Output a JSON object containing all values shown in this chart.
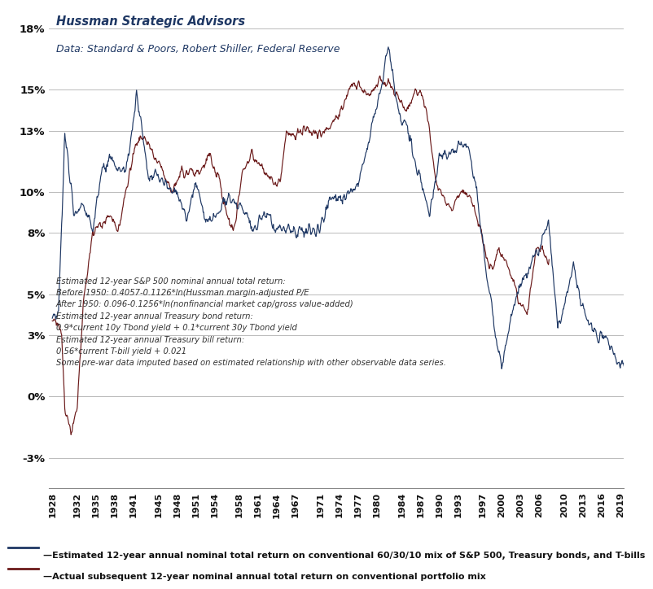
{
  "title_line1": "Hussman Strategic Advisors",
  "title_line2": "Data: Standard & Poors, Robert Shiller, Federal Reserve",
  "annotation_text": "Estimated 12-year S&P 500 nominal annual total return:\nBefore 1950: 0.4057-0.1126*ln(Hussman margin-adjusted P/E\nAfter 1950: 0.096-0.1256*ln(nonfinancial market cap/gross value-added)\nEstimated 12-year annual Treasury bond return:\n0.9*current 10y Tbond yield + 0.1*current 30y Tbond yield\nEstimated 12-year annual Treasury bill return:\n0.56*current T-bill yield + 0.021\nSome pre-war data imputed based on estimated relationship with other observable data series.",
  "legend_line1": "—Estimated 12-year annual nominal total return on conventional 60/30/10 mix of S&P 500, Treasury bonds, and T-bills",
  "legend_line2": "—Actual subsequent 12-year nominal annual total return on conventional portfolio mix",
  "navy_color": "#1F3864",
  "brown_color": "#6B1A1A",
  "yticks": [
    -0.03,
    0.0,
    0.03,
    0.05,
    0.08,
    0.1,
    0.13,
    0.15,
    0.18
  ],
  "ytick_labels": [
    "-3%",
    "0%",
    "3%",
    "5%",
    "8%",
    "10%",
    "13%",
    "15%",
    "18%"
  ],
  "ylim": [
    -0.045,
    0.19
  ],
  "xlim": [
    1927.5,
    2019.5
  ],
  "xticks": [
    1928,
    1932,
    1935,
    1938,
    1941,
    1945,
    1948,
    1951,
    1954,
    1958,
    1961,
    1964,
    1967,
    1971,
    1974,
    1977,
    1980,
    1984,
    1987,
    1990,
    1993,
    1997,
    2000,
    2003,
    2006,
    2010,
    2013,
    2016,
    2019
  ]
}
